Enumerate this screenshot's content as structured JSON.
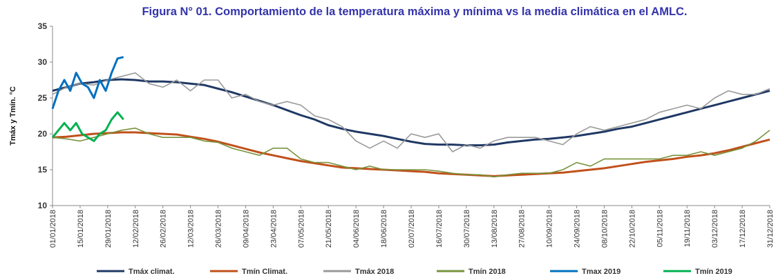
{
  "chart_data": {
    "type": "line",
    "title": "Figura N° 01. Comportamiento de la temperatura máxima y mínima vs la media climática en el AMLC.",
    "y_label": "Tmáx y Tmín. °C",
    "xlim": [
      0,
      364
    ],
    "xticks": [
      {
        "value": 0,
        "label": "01/01/2018"
      },
      {
        "value": 14,
        "label": "15/01/2018"
      },
      {
        "value": 28,
        "label": "29/01/2018"
      },
      {
        "value": 42,
        "label": "12/02/2018"
      },
      {
        "value": 56,
        "label": "26/02/2018"
      },
      {
        "value": 70,
        "label": "12/03/2018"
      },
      {
        "value": 84,
        "label": "26/03/2018"
      },
      {
        "value": 98,
        "label": "09/04/2018"
      },
      {
        "value": 112,
        "label": "23/04/2018"
      },
      {
        "value": 126,
        "label": "07/05/2018"
      },
      {
        "value": 140,
        "label": "21/05/2018"
      },
      {
        "value": 154,
        "label": "04/06/2018"
      },
      {
        "value": 168,
        "label": "18/06/2018"
      },
      {
        "value": 182,
        "label": "02/07/2018"
      },
      {
        "value": 196,
        "label": "16/07/2018"
      },
      {
        "value": 210,
        "label": "30/07/2018"
      },
      {
        "value": 224,
        "label": "13/08/2018"
      },
      {
        "value": 238,
        "label": "27/08/2018"
      },
      {
        "value": 252,
        "label": "10/09/2018"
      },
      {
        "value": 266,
        "label": "24/09/2018"
      },
      {
        "value": 280,
        "label": "08/10/2018"
      },
      {
        "value": 294,
        "label": "22/10/2018"
      },
      {
        "value": 308,
        "label": "05/11/2018"
      },
      {
        "value": 322,
        "label": "19/11/2018"
      },
      {
        "value": 336,
        "label": "03/12/2018"
      },
      {
        "value": 350,
        "label": "17/12/2018"
      },
      {
        "value": 364,
        "label": "31/12/2018"
      }
    ],
    "ylim": [
      10,
      35
    ],
    "yticks": [
      10,
      15,
      20,
      25,
      30,
      35
    ],
    "grid": false,
    "legend": "bottom",
    "series": [
      {
        "name": "Tmáx climat.",
        "color": "#1f3864",
        "x": [
          0,
          7,
          14,
          21,
          28,
          35,
          42,
          49,
          56,
          63,
          70,
          77,
          84,
          91,
          98,
          105,
          112,
          119,
          126,
          133,
          140,
          147,
          154,
          161,
          168,
          175,
          182,
          189,
          196,
          203,
          210,
          217,
          224,
          231,
          238,
          245,
          252,
          259,
          266,
          273,
          280,
          287,
          294,
          301,
          308,
          315,
          322,
          329,
          336,
          343,
          350,
          357,
          364
        ],
        "values": [
          26,
          26.5,
          27,
          27.2,
          27.5,
          27.6,
          27.5,
          27.3,
          27.3,
          27.2,
          27,
          26.8,
          26.3,
          25.8,
          25.2,
          24.6,
          24,
          23.3,
          22.6,
          22,
          21.2,
          20.7,
          20.3,
          20,
          19.7,
          19.3,
          18.9,
          18.6,
          18.5,
          18.5,
          18.4,
          18.4,
          18.5,
          18.8,
          19,
          19.2,
          19.3,
          19.5,
          19.7,
          20,
          20.3,
          20.7,
          21,
          21.5,
          22,
          22.5,
          23,
          23.5,
          24,
          24.5,
          25,
          25.5,
          26
        ]
      },
      {
        "name": "Tmín Climat.",
        "color": "#c0501a",
        "x": [
          0,
          7,
          14,
          21,
          28,
          35,
          42,
          49,
          56,
          63,
          70,
          77,
          84,
          91,
          98,
          105,
          112,
          119,
          126,
          133,
          140,
          147,
          154,
          161,
          168,
          175,
          182,
          189,
          196,
          203,
          210,
          217,
          224,
          231,
          238,
          245,
          252,
          259,
          266,
          273,
          280,
          287,
          294,
          301,
          308,
          315,
          322,
          329,
          336,
          343,
          350,
          357,
          364
        ],
        "values": [
          19.5,
          19.6,
          19.8,
          20,
          20.1,
          20.2,
          20.2,
          20.1,
          20,
          19.9,
          19.6,
          19.3,
          18.9,
          18.4,
          17.9,
          17.4,
          17,
          16.6,
          16.2,
          15.9,
          15.6,
          15.3,
          15.2,
          15.1,
          15,
          14.9,
          14.8,
          14.7,
          14.5,
          14.4,
          14.3,
          14.2,
          14.1,
          14.2,
          14.3,
          14.4,
          14.5,
          14.6,
          14.8,
          15,
          15.2,
          15.5,
          15.8,
          16.1,
          16.3,
          16.5,
          16.8,
          17,
          17.3,
          17.7,
          18.2,
          18.7,
          19.2
        ]
      },
      {
        "name": "Tmáx 2018",
        "color": "#999999",
        "x": [
          0,
          7,
          14,
          21,
          28,
          35,
          42,
          49,
          56,
          63,
          70,
          77,
          84,
          91,
          98,
          105,
          112,
          119,
          126,
          133,
          140,
          147,
          154,
          161,
          168,
          175,
          182,
          189,
          196,
          203,
          210,
          217,
          224,
          231,
          238,
          245,
          252,
          259,
          266,
          273,
          280,
          287,
          294,
          301,
          308,
          315,
          322,
          329,
          336,
          343,
          350,
          357,
          364
        ],
        "values": [
          25.5,
          26.5,
          27,
          26.8,
          27.5,
          28,
          28.5,
          27,
          26.5,
          27.5,
          26,
          27.5,
          27.5,
          25,
          25.5,
          24.5,
          24,
          24.5,
          24,
          22.5,
          22,
          21,
          19,
          18,
          19,
          18,
          20,
          19.5,
          20,
          17.5,
          18.5,
          18,
          19,
          19.5,
          19.5,
          19.5,
          19,
          18.5,
          20,
          21,
          20.5,
          21,
          21.5,
          22,
          23,
          23.5,
          24,
          23.5,
          25,
          26,
          25.5,
          25.5,
          26.3
        ]
      },
      {
        "name": "Tmín 2018",
        "color": "#77933c",
        "x": [
          0,
          7,
          14,
          21,
          28,
          35,
          42,
          49,
          56,
          63,
          70,
          77,
          84,
          91,
          98,
          105,
          112,
          119,
          126,
          133,
          140,
          147,
          154,
          161,
          168,
          175,
          182,
          189,
          196,
          203,
          210,
          217,
          224,
          231,
          238,
          245,
          252,
          259,
          266,
          273,
          280,
          287,
          294,
          301,
          308,
          315,
          322,
          329,
          336,
          343,
          350,
          357,
          364
        ],
        "values": [
          19.5,
          19.3,
          19,
          19.5,
          20,
          20.5,
          20.8,
          20,
          19.5,
          19.5,
          19.5,
          19,
          18.8,
          18,
          17.5,
          17,
          18,
          18,
          16.5,
          16,
          16,
          15.5,
          15,
          15.5,
          15,
          15,
          15,
          15,
          14.8,
          14.5,
          14.3,
          14.3,
          14,
          14.3,
          14.5,
          14.5,
          14.5,
          15,
          16,
          15.5,
          16.5,
          16.5,
          16.5,
          16.5,
          16.5,
          17,
          17,
          17.5,
          17,
          17.5,
          18,
          19,
          20.5
        ]
      },
      {
        "name": "Tmax 2019",
        "color": "#0070c0",
        "x": [
          0,
          3,
          6,
          9,
          12,
          15,
          18,
          21,
          24,
          27,
          30,
          33,
          36
        ],
        "values": [
          23.5,
          26,
          27.5,
          26,
          28.5,
          27,
          26.5,
          25,
          27.5,
          26,
          28.5,
          30.5,
          30.7
        ]
      },
      {
        "name": "Tmín 2019",
        "color": "#00b050",
        "x": [
          0,
          3,
          6,
          9,
          12,
          15,
          18,
          21,
          24,
          27,
          30,
          33,
          36
        ],
        "values": [
          19.5,
          20.5,
          21.5,
          20.5,
          21.5,
          20,
          19.5,
          19,
          20,
          20.5,
          22,
          23,
          22
        ]
      }
    ]
  }
}
